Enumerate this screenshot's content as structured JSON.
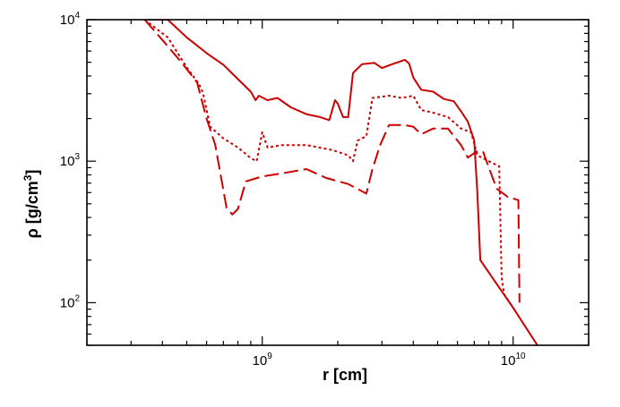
{
  "chart_data": {
    "type": "line",
    "title": "",
    "xlabel": "r [cm]",
    "ylabel_prefix": "ρ [g/cm",
    "ylabel_sup": "3",
    "ylabel_suffix": "]",
    "x_scale": "log",
    "y_scale": "log",
    "xlim": [
      200000000.0,
      20000000000.0
    ],
    "ylim": [
      50,
      10000
    ],
    "grid": false,
    "legend": "none",
    "line_color": "#cc0000",
    "x_major_ticks": [
      {
        "value": 1000000000.0,
        "base": "10",
        "exp": "9"
      },
      {
        "value": 10000000000.0,
        "base": "10",
        "exp": "10"
      }
    ],
    "y_major_ticks": [
      {
        "value": 100,
        "base": "10",
        "exp": "2"
      },
      {
        "value": 1000,
        "base": "10",
        "exp": "3"
      },
      {
        "value": 10000,
        "base": "10",
        "exp": "4"
      }
    ],
    "series": [
      {
        "style": "solid",
        "points": [
          [
            340000000.0,
            10000
          ],
          [
            420000000.0,
            10000
          ],
          [
            500000000.0,
            7500
          ],
          [
            600000000.0,
            5800
          ],
          [
            700000000.0,
            4800
          ],
          [
            800000000.0,
            3800
          ],
          [
            900000000.0,
            3100
          ],
          [
            940000000.0,
            2700
          ],
          [
            970000000.0,
            2900
          ],
          [
            1050000000.0,
            2700
          ],
          [
            1150000000.0,
            2800
          ],
          [
            1300000000.0,
            2400
          ],
          [
            1500000000.0,
            2150
          ],
          [
            1700000000.0,
            2050
          ],
          [
            1850000000.0,
            1950
          ],
          [
            1900000000.0,
            2300
          ],
          [
            1950000000.0,
            2700
          ],
          [
            2000000000.0,
            2550
          ],
          [
            2100000000.0,
            2050
          ],
          [
            2200000000.0,
            2050
          ],
          [
            2300000000.0,
            4200
          ],
          [
            2500000000.0,
            4850
          ],
          [
            2800000000.0,
            4950
          ],
          [
            3000000000.0,
            4550
          ],
          [
            3300000000.0,
            4850
          ],
          [
            3700000000.0,
            5200
          ],
          [
            3850000000.0,
            4900
          ],
          [
            4000000000.0,
            3900
          ],
          [
            4300000000.0,
            3200
          ],
          [
            4800000000.0,
            3100
          ],
          [
            5300000000.0,
            2750
          ],
          [
            5800000000.0,
            2650
          ],
          [
            6200000000.0,
            2250
          ],
          [
            6600000000.0,
            1900
          ],
          [
            7000000000.0,
            1400
          ],
          [
            7200000000.0,
            600
          ],
          [
            7400000000.0,
            200
          ],
          [
            8500000000.0,
            140
          ],
          [
            10000000000.0,
            92
          ],
          [
            12500000000.0,
            50
          ]
        ]
      },
      {
        "style": "dotted",
        "points": [
          [
            340000000.0,
            10000
          ],
          [
            420000000.0,
            7500
          ],
          [
            500000000.0,
            4600
          ],
          [
            560000000.0,
            3500
          ],
          [
            580000000.0,
            3050
          ],
          [
            620000000.0,
            1750
          ],
          [
            700000000.0,
            1450
          ],
          [
            800000000.0,
            1250
          ],
          [
            900000000.0,
            1050
          ],
          [
            950000000.0,
            1000
          ],
          [
            1000000000.0,
            1600
          ],
          [
            1050000000.0,
            1250
          ],
          [
            1200000000.0,
            1300
          ],
          [
            1500000000.0,
            1300
          ],
          [
            1900000000.0,
            1200
          ],
          [
            2200000000.0,
            1100
          ],
          [
            2300000000.0,
            1000
          ],
          [
            2400000000.0,
            1400
          ],
          [
            2600000000.0,
            1500
          ],
          [
            2750000000.0,
            2800
          ],
          [
            3200000000.0,
            2900
          ],
          [
            3600000000.0,
            2800
          ],
          [
            4000000000.0,
            2900
          ],
          [
            4300000000.0,
            2300
          ],
          [
            4800000000.0,
            2200
          ],
          [
            5500000000.0,
            2050
          ],
          [
            6200000000.0,
            1700
          ],
          [
            6800000000.0,
            1600
          ],
          [
            7200000000.0,
            1100
          ],
          [
            8000000000.0,
            1000
          ],
          [
            8800000000.0,
            920
          ],
          [
            9000000000.0,
            150
          ],
          [
            9200000000.0,
            115
          ],
          [
            10000000000.0,
            92
          ]
        ]
      },
      {
        "style": "dashed",
        "points": [
          [
            340000000.0,
            10000
          ],
          [
            420000000.0,
            6500
          ],
          [
            480000000.0,
            4900
          ],
          [
            550000000.0,
            3600
          ],
          [
            600000000.0,
            2000
          ],
          [
            650000000.0,
            1300
          ],
          [
            720000000.0,
            470
          ],
          [
            760000000.0,
            420
          ],
          [
            800000000.0,
            460
          ],
          [
            860000000.0,
            720
          ],
          [
            1000000000.0,
            780
          ],
          [
            1200000000.0,
            820
          ],
          [
            1500000000.0,
            880
          ],
          [
            1800000000.0,
            760
          ],
          [
            2200000000.0,
            690
          ],
          [
            2600000000.0,
            590
          ],
          [
            2750000000.0,
            880
          ],
          [
            2950000000.0,
            1300
          ],
          [
            3200000000.0,
            1800
          ],
          [
            3700000000.0,
            1800
          ],
          [
            4000000000.0,
            1750
          ],
          [
            4300000000.0,
            1550
          ],
          [
            4800000000.0,
            1700
          ],
          [
            5500000000.0,
            1700
          ],
          [
            6200000000.0,
            1300
          ],
          [
            6600000000.0,
            1060
          ],
          [
            7200000000.0,
            1180
          ],
          [
            7600000000.0,
            1160
          ],
          [
            8000000000.0,
            900
          ],
          [
            8600000000.0,
            640
          ],
          [
            9500000000.0,
            560
          ],
          [
            10500000000.0,
            530
          ],
          [
            10600000000.0,
            100
          ]
        ]
      }
    ]
  }
}
